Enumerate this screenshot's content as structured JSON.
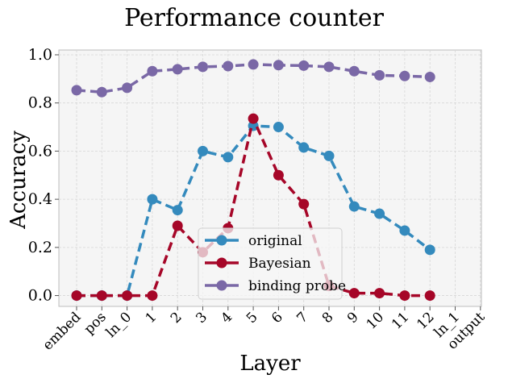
{
  "chart_data": {
    "type": "line",
    "title": "Performance counter",
    "xlabel": "Layer",
    "ylabel": "Accuracy",
    "categories": [
      "embed",
      "pos",
      "ln_0",
      "1",
      "2",
      "3",
      "4",
      "5",
      "6",
      "7",
      "8",
      "9",
      "10",
      "11",
      "12",
      "ln_1",
      "output"
    ],
    "yticks": [
      "0.0",
      "0.2",
      "0.4",
      "0.6",
      "0.8",
      "1.0"
    ],
    "ylim": [
      -0.045,
      1.02
    ],
    "grid": true,
    "legend_position": "lower-center",
    "series": [
      {
        "name": "original",
        "color": "#348abd",
        "values": [
          0.0,
          0.0,
          0.0,
          0.4,
          0.355,
          0.6,
          0.575,
          0.705,
          0.7,
          0.615,
          0.58,
          0.37,
          0.34,
          0.27,
          0.19,
          null,
          null
        ]
      },
      {
        "name": "Bayesian",
        "color": "#a60628",
        "values": [
          0.0,
          0.0,
          0.0,
          0.0,
          0.29,
          0.18,
          0.28,
          0.735,
          0.5,
          0.38,
          0.04,
          0.01,
          0.01,
          0.0,
          0.0,
          null,
          null
        ]
      },
      {
        "name": "binding probe",
        "color": "#7a68a6",
        "values": [
          0.853,
          0.845,
          0.863,
          0.932,
          0.94,
          0.95,
          0.953,
          0.96,
          0.957,
          0.955,
          0.95,
          0.932,
          0.915,
          0.912,
          0.908,
          null,
          null
        ]
      }
    ]
  }
}
